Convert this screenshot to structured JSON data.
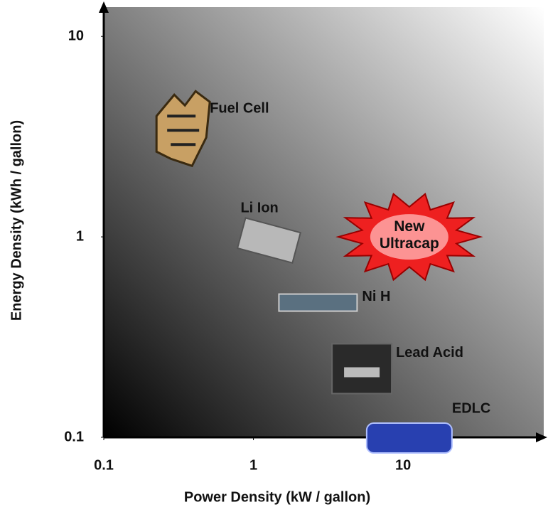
{
  "chart_data": {
    "type": "scatter",
    "x_label": "Power Density (kW / gallon)",
    "y_label": "Energy Density (kWh / gallon)",
    "log_x": true,
    "log_y": true,
    "xlim": [
      0.1,
      87
    ],
    "ylim": [
      0.1,
      14
    ],
    "xticks": [
      0.1,
      1,
      10
    ],
    "yticks": [
      0.1,
      1,
      10
    ],
    "points": [
      {
        "label": "Fuel Cell",
        "x": 0.33,
        "y": 3.4,
        "color": "#c8a064"
      },
      {
        "label": "Li Ion",
        "x": 1.27,
        "y": 0.96,
        "color": "#b8b8b8"
      },
      {
        "label": "Ni H",
        "x": 2.7,
        "y": 0.47,
        "color": "#5a7080"
      },
      {
        "label": "Lead Acid",
        "x": 5.3,
        "y": 0.22,
        "color": "#2a2a2a"
      },
      {
        "label": "EDLC",
        "x": 11,
        "y": 0.1,
        "color": "#2840b0"
      },
      {
        "label": "New Ultracap",
        "x": 11,
        "y": 1.0,
        "color": "#ee2020"
      }
    ]
  }
}
